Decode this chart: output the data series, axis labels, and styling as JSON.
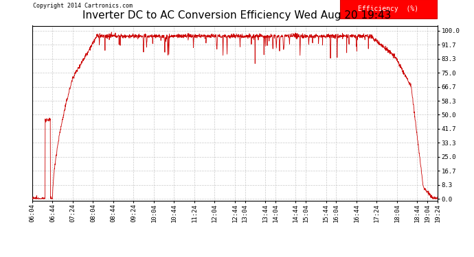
{
  "title": "Inverter DC to AC Conversion Efficiency Wed Aug 20 19:43",
  "copyright": "Copyright 2014 Cartronics.com",
  "legend_label": "Efficiency  (%)",
  "legend_bg": "#ff0000",
  "legend_text_color": "#ffffff",
  "line_color": "#cc0000",
  "bg_color": "#ffffff",
  "grid_color": "#bbbbbb",
  "yticks": [
    0.0,
    8.3,
    16.7,
    25.0,
    33.3,
    41.7,
    50.0,
    58.3,
    66.7,
    75.0,
    83.3,
    91.7,
    100.0
  ],
  "ylim": [
    -1,
    103
  ],
  "title_fontsize": 11,
  "tick_fontsize": 6.5,
  "xlabel_times": [
    "06:04",
    "06:44",
    "07:24",
    "08:04",
    "08:44",
    "09:24",
    "10:04",
    "10:44",
    "11:24",
    "12:04",
    "12:44",
    "13:04",
    "13:44",
    "14:04",
    "14:44",
    "15:04",
    "15:44",
    "16:04",
    "16:44",
    "17:24",
    "18:04",
    "18:44",
    "19:04",
    "19:24"
  ]
}
